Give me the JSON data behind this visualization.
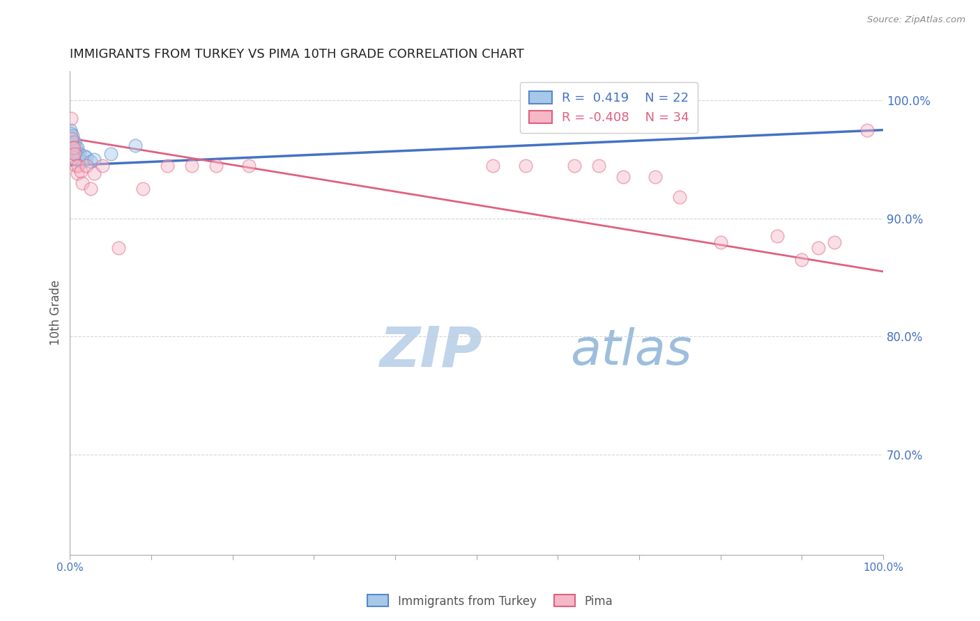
{
  "title": "IMMIGRANTS FROM TURKEY VS PIMA 10TH GRADE CORRELATION CHART",
  "source_text": "Source: ZipAtlas.com",
  "ylabel": "10th Grade",
  "legend_label_blue": "Immigrants from Turkey",
  "legend_label_pink": "Pima",
  "blue_R": 0.419,
  "blue_N": 22,
  "pink_R": -0.408,
  "pink_N": 34,
  "blue_fill_color": "#a8c8e8",
  "pink_fill_color": "#f4b8c8",
  "blue_edge_color": "#5588cc",
  "pink_edge_color": "#e06080",
  "blue_line_color": "#4472c4",
  "pink_line_color": "#e06080",
  "title_color": "#222222",
  "axis_label_color": "#555555",
  "right_tick_color": "#4472c4",
  "watermark_zip_color": "#c8d8ec",
  "watermark_atlas_color": "#b0c8e0",
  "background_color": "#ffffff",
  "xlim": [
    0.0,
    1.0
  ],
  "ylim": [
    0.615,
    1.025
  ],
  "yticks": [
    0.7,
    0.8,
    0.9,
    1.0
  ],
  "ytick_labels": [
    "70.0%",
    "80.0%",
    "90.0%",
    "100.0%"
  ],
  "blue_scatter_x": [
    0.0008,
    0.001,
    0.0015,
    0.002,
    0.002,
    0.003,
    0.003,
    0.004,
    0.005,
    0.006,
    0.007,
    0.008,
    0.009,
    0.01,
    0.012,
    0.015,
    0.018,
    0.02,
    0.025,
    0.03,
    0.05,
    0.08
  ],
  "blue_scatter_y": [
    0.975,
    0.968,
    0.972,
    0.963,
    0.958,
    0.97,
    0.965,
    0.96,
    0.955,
    0.965,
    0.96,
    0.955,
    0.96,
    0.953,
    0.955,
    0.948,
    0.953,
    0.952,
    0.948,
    0.95,
    0.955,
    0.962
  ],
  "pink_scatter_x": [
    0.001,
    0.002,
    0.003,
    0.004,
    0.005,
    0.006,
    0.007,
    0.009,
    0.01,
    0.013,
    0.015,
    0.02,
    0.025,
    0.03,
    0.04,
    0.06,
    0.09,
    0.12,
    0.15,
    0.18,
    0.22,
    0.52,
    0.56,
    0.62,
    0.65,
    0.68,
    0.72,
    0.75,
    0.8,
    0.87,
    0.9,
    0.92,
    0.94,
    0.98
  ],
  "pink_scatter_y": [
    0.985,
    0.968,
    0.96,
    0.952,
    0.96,
    0.955,
    0.945,
    0.938,
    0.945,
    0.94,
    0.93,
    0.945,
    0.925,
    0.938,
    0.945,
    0.875,
    0.925,
    0.945,
    0.945,
    0.945,
    0.945,
    0.945,
    0.945,
    0.945,
    0.945,
    0.935,
    0.935,
    0.918,
    0.88,
    0.885,
    0.865,
    0.875,
    0.88,
    0.975
  ],
  "blue_line_x": [
    0.0,
    1.0
  ],
  "blue_line_y": [
    0.945,
    0.975
  ],
  "pink_line_x": [
    0.0,
    1.0
  ],
  "pink_line_y": [
    0.968,
    0.855
  ],
  "marker_size": 180,
  "marker_alpha": 0.45,
  "marker_linewidth": 1.2
}
